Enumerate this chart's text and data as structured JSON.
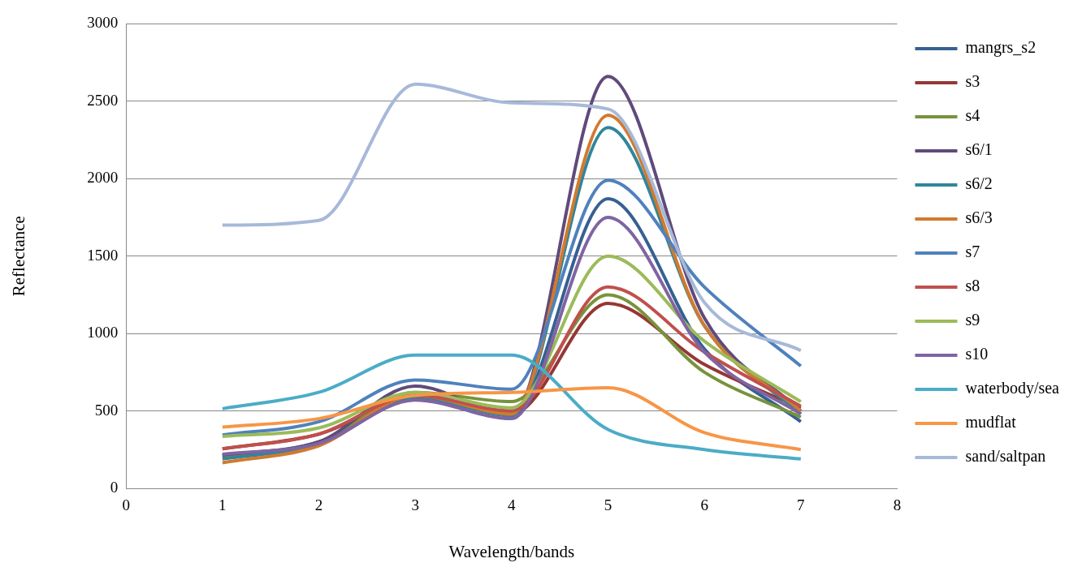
{
  "chart_data": {
    "type": "line",
    "xlabel": "Wavelength/bands",
    "ylabel": "Reflectance",
    "x": [
      1,
      2,
      3,
      4,
      5,
      6,
      7
    ],
    "xlim": [
      0,
      8
    ],
    "xticks": [
      0,
      1,
      2,
      3,
      4,
      5,
      6,
      7,
      8
    ],
    "ylim": [
      0,
      3000
    ],
    "yticks": [
      0,
      500,
      1000,
      1500,
      2000,
      2500,
      3000
    ],
    "grid": "y",
    "legend": "right",
    "marker": "none",
    "line_style": "solid",
    "series": [
      {
        "name": "mangrs_s2",
        "color": "#376092",
        "values": [
          210,
          300,
          610,
          480,
          1870,
          900,
          430
        ]
      },
      {
        "name": "s3",
        "color": "#953735",
        "values": [
          255,
          350,
          580,
          480,
          1195,
          800,
          520
        ]
      },
      {
        "name": "s4",
        "color": "#77933c",
        "values": [
          200,
          290,
          620,
          560,
          1250,
          750,
          460
        ]
      },
      {
        "name": "s6/1",
        "color": "#604a7b",
        "values": [
          215,
          300,
          660,
          470,
          2660,
          1100,
          500
        ]
      },
      {
        "name": "s6/2",
        "color": "#31859c",
        "values": [
          190,
          285,
          590,
          470,
          2330,
          1050,
          480
        ]
      },
      {
        "name": "s6/3",
        "color": "#d17a2e",
        "values": [
          165,
          275,
          600,
          480,
          2410,
          1050,
          500
        ]
      },
      {
        "name": "s7",
        "color": "#4f81bd",
        "values": [
          345,
          430,
          700,
          640,
          1990,
          1300,
          790
        ]
      },
      {
        "name": "s8",
        "color": "#c0504d",
        "values": [
          255,
          350,
          600,
          500,
          1300,
          880,
          530
        ]
      },
      {
        "name": "s9",
        "color": "#9bbb59",
        "values": [
          335,
          390,
          620,
          520,
          1500,
          950,
          560
        ]
      },
      {
        "name": "s10",
        "color": "#8064a2",
        "values": [
          220,
          290,
          570,
          450,
          1750,
          880,
          480
        ]
      },
      {
        "name": "waterbody/sea",
        "color": "#4bacc6",
        "values": [
          514,
          620,
          860,
          860,
          380,
          250,
          190
        ]
      },
      {
        "name": "mudflat",
        "color": "#f79646",
        "values": [
          395,
          450,
          600,
          620,
          650,
          360,
          250
        ]
      },
      {
        "name": "sand/saltpan",
        "color": "#a7b9d9",
        "values": [
          1700,
          1730,
          2610,
          2490,
          2450,
          1200,
          890
        ]
      }
    ]
  }
}
